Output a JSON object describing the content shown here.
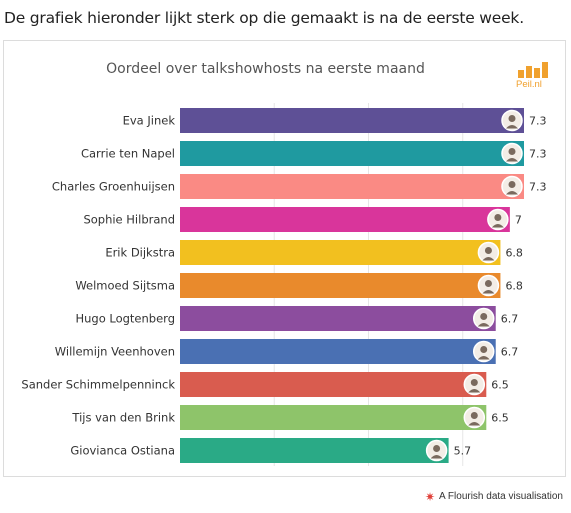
{
  "intro_text": "De grafiek hieronder lijkt sterk op die gemaakt is na de eerste week.",
  "logo_text": "Peil.nl",
  "footer": {
    "icon": "flourish-asterisk-icon",
    "text": "A Flourish data visualisation"
  },
  "chart_data": {
    "type": "bar",
    "orientation": "horizontal",
    "title": "Oordeel over talkshowhosts na eerste maand",
    "xlabel": "",
    "ylabel": "",
    "grid": true,
    "categories": [
      "Eva Jinek",
      "Carrie ten Napel",
      "Charles Groenhuijsen",
      "Sophie Hilbrand",
      "Erik Dijkstra",
      "Welmoed Sijtsma",
      "Hugo Logtenberg",
      "Willemijn Veenhoven",
      "Sander Schimmelpenninck",
      "Tijs van den Brink",
      "Giovianca Ostiana"
    ],
    "values": [
      7.3,
      7.3,
      7.3,
      7,
      6.8,
      6.8,
      6.7,
      6.7,
      6.5,
      6.5,
      5.7
    ],
    "value_labels": [
      "7.3",
      "7.3",
      "7.3",
      "7",
      "6.8",
      "6.8",
      "6.7",
      "6.7",
      "6.5",
      "6.5",
      "5.7"
    ],
    "colors": [
      "#5e5096",
      "#1f9aa0",
      "#fa8a84",
      "#d9359b",
      "#f2c01f",
      "#e98a2c",
      "#8c4d9e",
      "#4a70b3",
      "#d95c4f",
      "#8ec46a",
      "#2aaa86"
    ],
    "xlim": [
      0,
      7.3
    ]
  }
}
